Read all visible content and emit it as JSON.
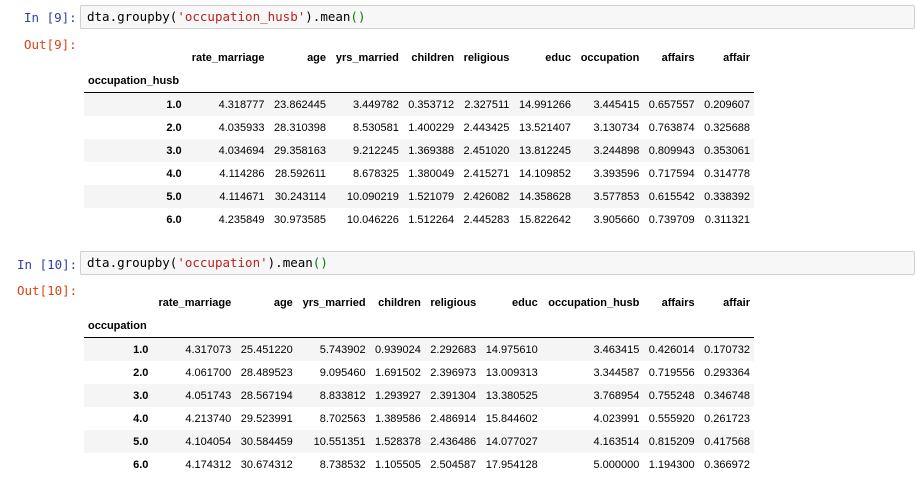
{
  "cell9": {
    "in_prompt": "In [9]:",
    "code_prefix": "dta.groupby(",
    "code_string": "'occupation_husb'",
    "code_suffix": ").",
    "code_method": "mean",
    "code_end": "()",
    "out_prompt": "Out[9]:",
    "index_name": "occupation_husb",
    "columns": [
      "rate_marriage",
      "age",
      "yrs_married",
      "children",
      "religious",
      "educ",
      "occupation",
      "affairs",
      "affair"
    ],
    "rows": [
      {
        "index": "1.0",
        "values": [
          "4.318777",
          "23.862445",
          "3.449782",
          "0.353712",
          "2.327511",
          "14.991266",
          "3.445415",
          "0.657557",
          "0.209607"
        ]
      },
      {
        "index": "2.0",
        "values": [
          "4.035933",
          "28.310398",
          "8.530581",
          "1.400229",
          "2.443425",
          "13.521407",
          "3.130734",
          "0.763874",
          "0.325688"
        ]
      },
      {
        "index": "3.0",
        "values": [
          "4.034694",
          "29.358163",
          "9.212245",
          "1.369388",
          "2.451020",
          "13.812245",
          "3.244898",
          "0.809943",
          "0.353061"
        ]
      },
      {
        "index": "4.0",
        "values": [
          "4.114286",
          "28.592611",
          "8.678325",
          "1.380049",
          "2.415271",
          "14.109852",
          "3.393596",
          "0.717594",
          "0.314778"
        ]
      },
      {
        "index": "5.0",
        "values": [
          "4.114671",
          "30.243114",
          "10.090219",
          "1.521079",
          "2.426082",
          "14.358628",
          "3.577853",
          "0.615542",
          "0.338392"
        ]
      },
      {
        "index": "6.0",
        "values": [
          "4.235849",
          "30.973585",
          "10.046226",
          "1.512264",
          "2.445283",
          "15.822642",
          "3.905660",
          "0.739709",
          "0.311321"
        ]
      }
    ]
  },
  "cell10": {
    "in_prompt": "In [10]:",
    "code_prefix": "dta.groupby(",
    "code_string": "'occupation'",
    "code_suffix": ").",
    "code_method": "mean",
    "code_end": "()",
    "out_prompt": "Out[10]:",
    "index_name": "occupation",
    "columns": [
      "rate_marriage",
      "age",
      "yrs_married",
      "children",
      "religious",
      "educ",
      "occupation_husb",
      "affairs",
      "affair"
    ],
    "rows": [
      {
        "index": "1.0",
        "values": [
          "4.317073",
          "25.451220",
          "5.743902",
          "0.939024",
          "2.292683",
          "14.975610",
          "3.463415",
          "0.426014",
          "0.170732"
        ]
      },
      {
        "index": "2.0",
        "values": [
          "4.061700",
          "28.489523",
          "9.095460",
          "1.691502",
          "2.396973",
          "13.009313",
          "3.344587",
          "0.719556",
          "0.293364"
        ]
      },
      {
        "index": "3.0",
        "values": [
          "4.051743",
          "28.567194",
          "8.833812",
          "1.293927",
          "2.391304",
          "13.380525",
          "3.768954",
          "0.755248",
          "0.346748"
        ]
      },
      {
        "index": "4.0",
        "values": [
          "4.213740",
          "29.523991",
          "8.702563",
          "1.389586",
          "2.486914",
          "15.844602",
          "4.023991",
          "0.555920",
          "0.261723"
        ]
      },
      {
        "index": "5.0",
        "values": [
          "4.104054",
          "30.584459",
          "10.551351",
          "1.528378",
          "2.436486",
          "14.077027",
          "4.163514",
          "0.815209",
          "0.417568"
        ]
      },
      {
        "index": "6.0",
        "values": [
          "4.174312",
          "30.674312",
          "8.738532",
          "1.105505",
          "2.504587",
          "17.954128",
          "5.000000",
          "1.194300",
          "0.366972"
        ]
      }
    ]
  }
}
